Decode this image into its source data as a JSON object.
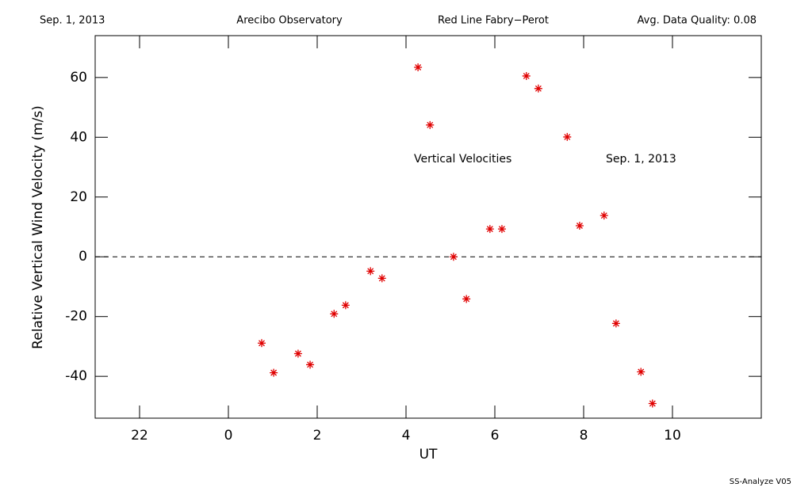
{
  "chart_data": {
    "type": "scatter",
    "header": [
      "Sep. 1, 2013",
      "Arecibo Observatory",
      "Red Line Fabry−Perot",
      "Avg. Data Quality: 0.08"
    ],
    "x_label": "UT",
    "y_label": "Relative Vertical Wind Velocity (m/s)",
    "annotations": [
      "Vertical Velocities",
      "Sep. 1, 2013"
    ],
    "footer": "SS-Analyze V05",
    "series": [
      {
        "name": "Vertical Velocities",
        "color": "#e00000",
        "x": [
          0.75,
          1.02,
          1.57,
          1.84,
          2.38,
          2.64,
          3.2,
          3.46,
          4.27,
          4.54,
          5.07,
          5.36,
          5.89,
          6.16,
          6.71,
          6.98,
          7.63,
          7.91,
          8.46,
          8.73,
          9.29,
          9.55
        ],
        "values": [
          -28.9,
          -38.8,
          -32.4,
          -36.1,
          -19.1,
          -16.2,
          -4.8,
          -7.2,
          63.4,
          44.1,
          0,
          -14.1,
          9.3,
          9.3,
          60.5,
          56.3,
          40.1,
          10.4,
          13.8,
          -22.3,
          -38.5,
          -49.1
        ]
      }
    ],
    "xlim": [
      -3,
      12
    ],
    "xticks": [
      {
        "value": -2,
        "label": "22"
      },
      0,
      2,
      4,
      6,
      8,
      10
    ],
    "ylim": [
      -54,
      74
    ],
    "yticks": [
      -40,
      -20,
      0,
      20,
      40,
      60
    ],
    "zero_line": true
  }
}
